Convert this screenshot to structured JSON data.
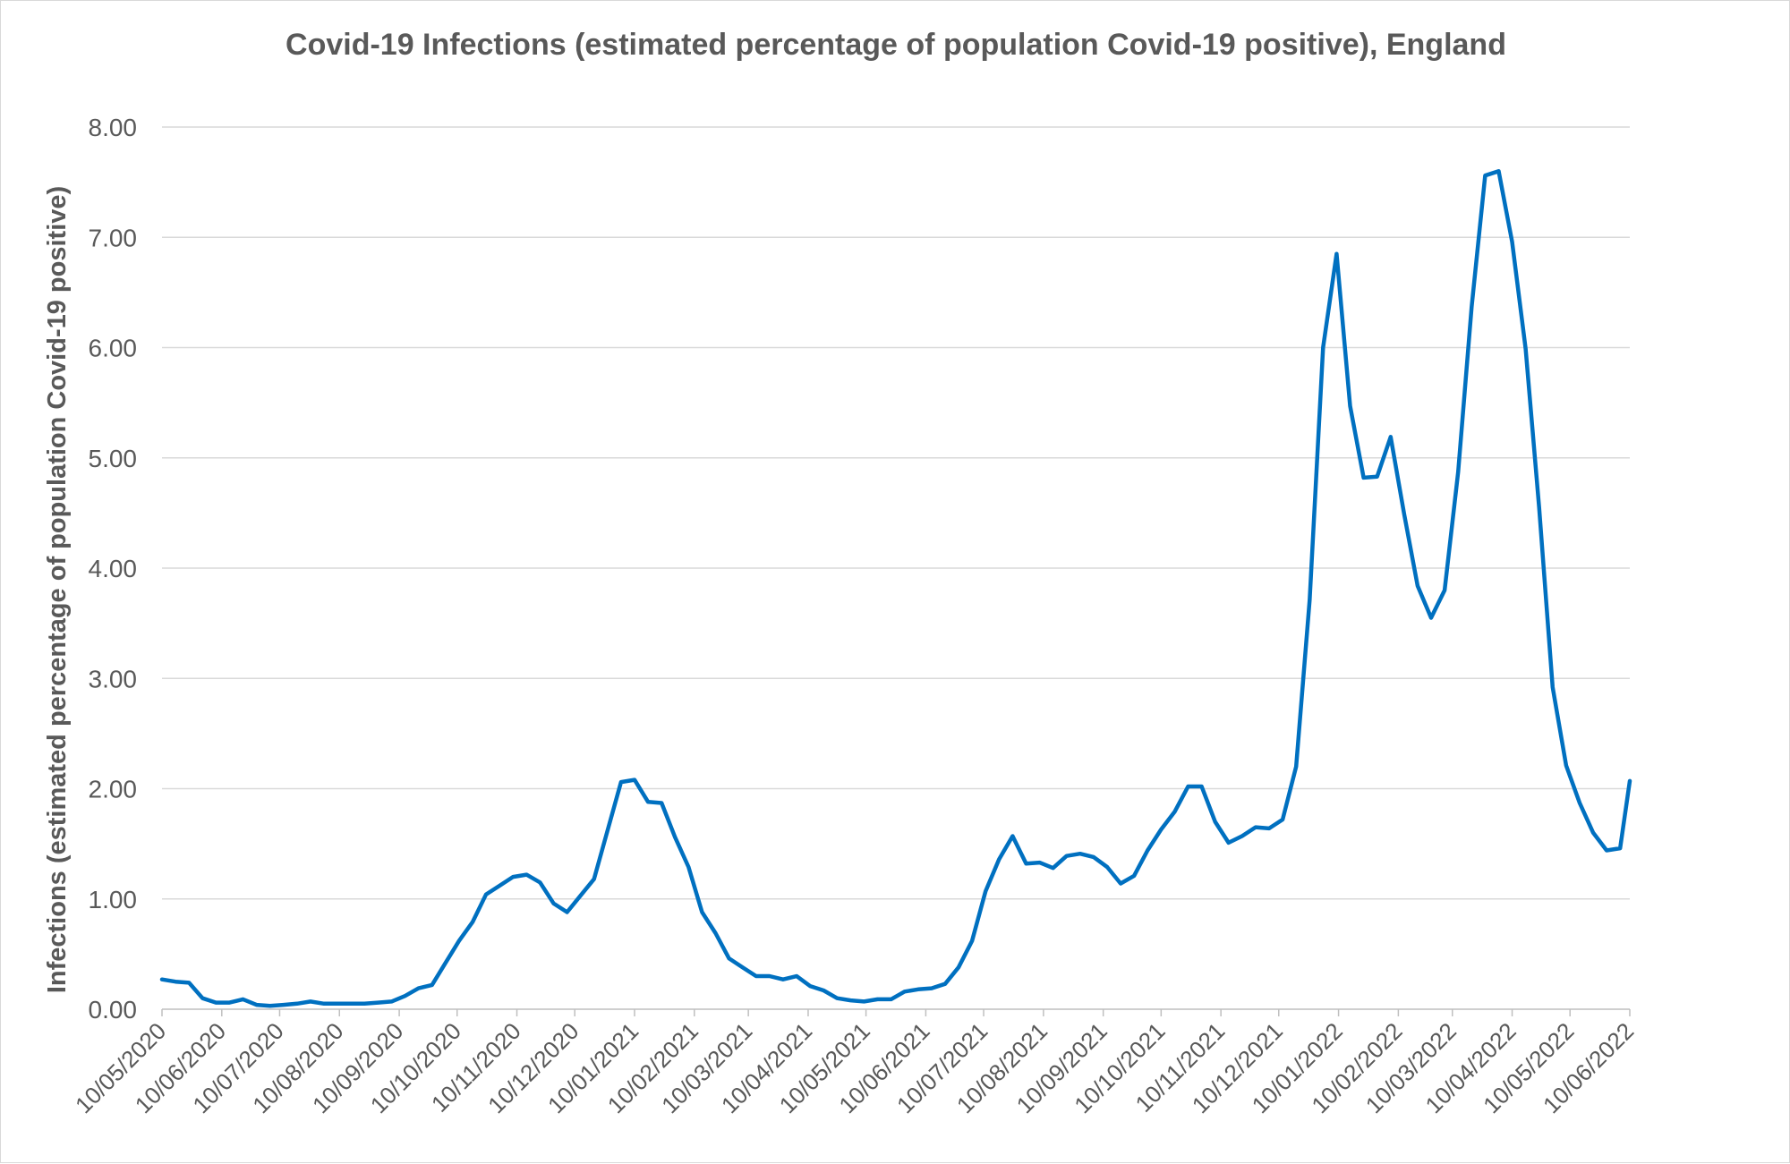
{
  "colors": {
    "series": "#0070c0",
    "text": "#595959",
    "grid": "#d9d9d9"
  },
  "chart_data": {
    "type": "line",
    "title": "Covid-19 Infections (estimated percentage of population Covid-19 positive), England",
    "xlabel": "",
    "ylabel": "Infections (estimated percentage of population Covid-19 positive)",
    "ylim": [
      0,
      8
    ],
    "y_ticks": [
      "0.00",
      "1.00",
      "2.00",
      "3.00",
      "4.00",
      "5.00",
      "6.00",
      "7.00",
      "8.00"
    ],
    "x_range": [
      "2020-05-10",
      "2022-06-10"
    ],
    "x_ticks": [
      "10/05/2020",
      "10/06/2020",
      "10/07/2020",
      "10/08/2020",
      "10/09/2020",
      "10/10/2020",
      "10/11/2020",
      "10/12/2020",
      "10/01/2021",
      "10/02/2021",
      "10/03/2021",
      "10/04/2021",
      "10/05/2021",
      "10/06/2021",
      "10/07/2021",
      "10/08/2021",
      "10/09/2021",
      "10/10/2021",
      "10/11/2021",
      "10/12/2021",
      "10/01/2022",
      "10/02/2022",
      "10/03/2022",
      "10/04/2022",
      "10/05/2022",
      "10/06/2022"
    ],
    "x_tick_dates": [
      "2020-05-10",
      "2020-06-10",
      "2020-07-10",
      "2020-08-10",
      "2020-09-10",
      "2020-10-10",
      "2020-11-10",
      "2020-12-10",
      "2021-01-10",
      "2021-02-10",
      "2021-03-10",
      "2021-04-10",
      "2021-05-10",
      "2021-06-10",
      "2021-07-10",
      "2021-08-10",
      "2021-09-10",
      "2021-10-10",
      "2021-11-10",
      "2021-12-10",
      "2022-01-10",
      "2022-02-10",
      "2022-03-10",
      "2022-04-10",
      "2022-05-10",
      "2022-06-10"
    ],
    "grid": true,
    "legend": "none",
    "series": [
      {
        "name": "",
        "points": [
          [
            "2020-05-10",
            0.27
          ],
          [
            "2020-05-17",
            0.25
          ],
          [
            "2020-05-24",
            0.24
          ],
          [
            "2020-05-31",
            0.1
          ],
          [
            "2020-06-07",
            0.06
          ],
          [
            "2020-06-14",
            0.06
          ],
          [
            "2020-06-21",
            0.09
          ],
          [
            "2020-06-28",
            0.04
          ],
          [
            "2020-07-05",
            0.03
          ],
          [
            "2020-07-12",
            0.04
          ],
          [
            "2020-07-19",
            0.05
          ],
          [
            "2020-07-26",
            0.07
          ],
          [
            "2020-08-02",
            0.05
          ],
          [
            "2020-08-09",
            0.05
          ],
          [
            "2020-08-16",
            0.05
          ],
          [
            "2020-08-23",
            0.05
          ],
          [
            "2020-08-30",
            0.06
          ],
          [
            "2020-09-06",
            0.07
          ],
          [
            "2020-09-13",
            0.12
          ],
          [
            "2020-09-20",
            0.19
          ],
          [
            "2020-09-27",
            0.22
          ],
          [
            "2020-10-04",
            0.42
          ],
          [
            "2020-10-11",
            0.62
          ],
          [
            "2020-10-18",
            0.79
          ],
          [
            "2020-10-25",
            1.04
          ],
          [
            "2020-11-01",
            1.12
          ],
          [
            "2020-11-08",
            1.2
          ],
          [
            "2020-11-15",
            1.22
          ],
          [
            "2020-11-22",
            1.15
          ],
          [
            "2020-11-29",
            0.96
          ],
          [
            "2020-12-06",
            0.88
          ],
          [
            "2020-12-13",
            1.03
          ],
          [
            "2020-12-20",
            1.18
          ],
          [
            "2020-12-27",
            1.62
          ],
          [
            "2021-01-03",
            2.06
          ],
          [
            "2021-01-10",
            2.08
          ],
          [
            "2021-01-17",
            1.88
          ],
          [
            "2021-01-24",
            1.87
          ],
          [
            "2021-01-31",
            1.56
          ],
          [
            "2021-02-07",
            1.29
          ],
          [
            "2021-02-14",
            0.88
          ],
          [
            "2021-02-21",
            0.69
          ],
          [
            "2021-02-28",
            0.46
          ],
          [
            "2021-03-07",
            0.38
          ],
          [
            "2021-03-14",
            0.3
          ],
          [
            "2021-03-21",
            0.3
          ],
          [
            "2021-03-28",
            0.27
          ],
          [
            "2021-04-04",
            0.3
          ],
          [
            "2021-04-11",
            0.21
          ],
          [
            "2021-04-18",
            0.17
          ],
          [
            "2021-04-25",
            0.1
          ],
          [
            "2021-05-02",
            0.08
          ],
          [
            "2021-05-09",
            0.07
          ],
          [
            "2021-05-16",
            0.09
          ],
          [
            "2021-05-23",
            0.09
          ],
          [
            "2021-05-30",
            0.16
          ],
          [
            "2021-06-06",
            0.18
          ],
          [
            "2021-06-13",
            0.19
          ],
          [
            "2021-06-20",
            0.23
          ],
          [
            "2021-06-27",
            0.38
          ],
          [
            "2021-07-04",
            0.62
          ],
          [
            "2021-07-11",
            1.07
          ],
          [
            "2021-07-18",
            1.36
          ],
          [
            "2021-07-25",
            1.57
          ],
          [
            "2021-08-01",
            1.32
          ],
          [
            "2021-08-08",
            1.33
          ],
          [
            "2021-08-15",
            1.28
          ],
          [
            "2021-08-22",
            1.39
          ],
          [
            "2021-08-29",
            1.41
          ],
          [
            "2021-09-05",
            1.38
          ],
          [
            "2021-09-12",
            1.29
          ],
          [
            "2021-09-19",
            1.14
          ],
          [
            "2021-09-26",
            1.21
          ],
          [
            "2021-10-03",
            1.44
          ],
          [
            "2021-10-10",
            1.63
          ],
          [
            "2021-10-17",
            1.79
          ],
          [
            "2021-10-24",
            2.02
          ],
          [
            "2021-10-31",
            2.02
          ],
          [
            "2021-11-07",
            1.7
          ],
          [
            "2021-11-14",
            1.51
          ],
          [
            "2021-11-21",
            1.57
          ],
          [
            "2021-11-28",
            1.65
          ],
          [
            "2021-12-05",
            1.64
          ],
          [
            "2021-12-12",
            1.72
          ],
          [
            "2021-12-19",
            2.2
          ],
          [
            "2021-12-26",
            3.71
          ],
          [
            "2022-01-02",
            6.0
          ],
          [
            "2022-01-09",
            6.85
          ],
          [
            "2022-01-16",
            5.47
          ],
          [
            "2022-01-23",
            4.82
          ],
          [
            "2022-01-30",
            4.83
          ],
          [
            "2022-02-06",
            5.19
          ],
          [
            "2022-02-13",
            4.49
          ],
          [
            "2022-02-20",
            3.84
          ],
          [
            "2022-02-27",
            3.55
          ],
          [
            "2022-03-06",
            3.8
          ],
          [
            "2022-03-13",
            4.87
          ],
          [
            "2022-03-20",
            6.37
          ],
          [
            "2022-03-27",
            7.56
          ],
          [
            "2022-04-03",
            7.6
          ],
          [
            "2022-04-10",
            6.96
          ],
          [
            "2022-04-17",
            5.99
          ],
          [
            "2022-04-24",
            4.55
          ],
          [
            "2022-05-01",
            2.92
          ],
          [
            "2022-05-08",
            2.21
          ],
          [
            "2022-05-15",
            1.87
          ],
          [
            "2022-05-22",
            1.6
          ],
          [
            "2022-05-29",
            1.44
          ],
          [
            "2022-06-05",
            1.46
          ],
          [
            "2022-06-10",
            2.07
          ]
        ]
      }
    ]
  }
}
